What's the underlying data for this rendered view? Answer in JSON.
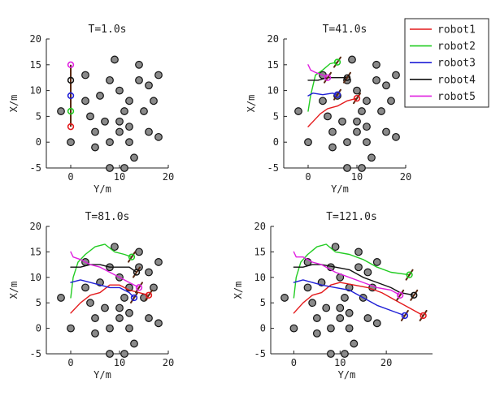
{
  "chart_data": [
    {
      "type": "scatter",
      "title": "T=1.0s",
      "xlabel": "Y/m",
      "ylabel": "X/m",
      "xlim": [
        -5,
        20
      ],
      "ylim": [
        -5,
        20
      ],
      "xticks": [
        "0",
        "10",
        "20"
      ],
      "yticks": [
        "-5",
        "0",
        "5",
        "10",
        "15",
        "20"
      ],
      "series": [
        {
          "name": "robot1",
          "color": "#e41a1c",
          "path": [
            [
              0,
              3
            ]
          ],
          "end": [
            0,
            3
          ]
        },
        {
          "name": "robot2",
          "color": "#22cc22",
          "path": [
            [
              0,
              6
            ]
          ],
          "end": [
            0,
            6
          ]
        },
        {
          "name": "robot3",
          "color": "#1f1fd6",
          "path": [
            [
              0,
              9
            ]
          ],
          "end": [
            0,
            9
          ]
        },
        {
          "name": "robot4",
          "color": "#111111",
          "path": [
            [
              0,
              12
            ]
          ],
          "end": [
            0,
            12
          ]
        },
        {
          "name": "robot5",
          "color": "#e020e0",
          "path": [
            [
              0,
              15
            ]
          ],
          "end": [
            0,
            15
          ]
        }
      ]
    },
    {
      "type": "scatter",
      "title": "T=41.0s",
      "xlabel": "Y/m",
      "ylabel": "X/m",
      "xlim": [
        -5,
        20
      ],
      "ylim": [
        -5,
        20
      ],
      "xticks": [
        "0",
        "10",
        "20"
      ],
      "yticks": [
        "-5",
        "0",
        "5",
        "10",
        "15",
        "20"
      ],
      "series": [
        {
          "name": "robot1",
          "color": "#e41a1c",
          "path": [
            [
              0,
              3
            ],
            [
              1,
              4
            ],
            [
              2.5,
              5.5
            ],
            [
              4,
              6.5
            ],
            [
              6,
              7
            ],
            [
              8,
              8
            ],
            [
              10,
              8.5
            ]
          ],
          "end": [
            10,
            8.5
          ]
        },
        {
          "name": "robot2",
          "color": "#22cc22",
          "path": [
            [
              0,
              6
            ],
            [
              0.5,
              9
            ],
            [
              1,
              11
            ],
            [
              1.5,
              13
            ],
            [
              3,
              14
            ],
            [
              4.5,
              15.2
            ],
            [
              6,
              15.5
            ]
          ],
          "end": [
            6,
            15.5
          ]
        },
        {
          "name": "robot3",
          "color": "#1f1fd6",
          "path": [
            [
              0,
              9
            ],
            [
              1,
              9.5
            ],
            [
              3,
              9.2
            ],
            [
              5,
              9.5
            ],
            [
              6,
              9.2
            ]
          ],
          "end": [
            6,
            9.2
          ]
        },
        {
          "name": "robot4",
          "color": "#111111",
          "path": [
            [
              0,
              12
            ],
            [
              2,
              12
            ],
            [
              4,
              12.5
            ],
            [
              6,
              12.5
            ],
            [
              8,
              12.5
            ]
          ],
          "end": [
            8,
            12.5
          ]
        },
        {
          "name": "robot5",
          "color": "#e020e0",
          "path": [
            [
              0,
              15
            ],
            [
              0.5,
              14
            ],
            [
              1.5,
              13.5
            ],
            [
              3,
              13
            ],
            [
              4,
              12.5
            ]
          ],
          "end": [
            4,
            12.5
          ]
        }
      ]
    },
    {
      "type": "scatter",
      "title": "T=81.0s",
      "xlabel": "Y/m",
      "ylabel": "X/m",
      "xlim": [
        -5,
        20
      ],
      "ylim": [
        -5,
        20
      ],
      "xticks": [
        "0",
        "10",
        "20"
      ],
      "yticks": [
        "-5",
        "0",
        "5",
        "10",
        "15",
        "20"
      ],
      "series": [
        {
          "name": "robot1",
          "color": "#e41a1c",
          "path": [
            [
              0,
              3
            ],
            [
              2,
              5
            ],
            [
              4,
              6.5
            ],
            [
              6,
              7
            ],
            [
              8,
              8.5
            ],
            [
              10,
              8.5
            ],
            [
              12,
              7.5
            ],
            [
              14,
              7
            ],
            [
              16,
              6.5
            ]
          ],
          "end": [
            16,
            6.5
          ]
        },
        {
          "name": "robot2",
          "color": "#22cc22",
          "path": [
            [
              0,
              6
            ],
            [
              0.5,
              10
            ],
            [
              1.5,
              13
            ],
            [
              3,
              14.5
            ],
            [
              5,
              16
            ],
            [
              7,
              16.5
            ],
            [
              9,
              15
            ],
            [
              11,
              14.5
            ],
            [
              12.5,
              14
            ]
          ],
          "end": [
            12.5,
            14
          ]
        },
        {
          "name": "robot3",
          "color": "#1f1fd6",
          "path": [
            [
              0,
              9
            ],
            [
              2,
              9.5
            ],
            [
              4,
              9
            ],
            [
              6,
              8.5
            ],
            [
              8,
              8
            ],
            [
              10,
              8
            ],
            [
              12,
              7
            ],
            [
              13,
              6
            ]
          ],
          "end": [
            13,
            6
          ]
        },
        {
          "name": "robot4",
          "color": "#111111",
          "path": [
            [
              0,
              12
            ],
            [
              2,
              12
            ],
            [
              4,
              12.5
            ],
            [
              6,
              12.5
            ],
            [
              8,
              12
            ],
            [
              10,
              12
            ],
            [
              12,
              12
            ],
            [
              13.5,
              11
            ]
          ],
          "end": [
            13.5,
            11
          ]
        },
        {
          "name": "robot5",
          "color": "#e020e0",
          "path": [
            [
              0,
              15
            ],
            [
              0.5,
              14
            ],
            [
              2,
              13.5
            ],
            [
              4,
              12.5
            ],
            [
              6,
              12
            ],
            [
              8,
              11
            ],
            [
              10,
              10
            ],
            [
              12,
              9
            ],
            [
              14,
              8
            ]
          ],
          "end": [
            14,
            8
          ]
        }
      ]
    },
    {
      "type": "scatter",
      "title": "T=121.0s",
      "xlabel": "Y/m",
      "ylabel": "X/m",
      "xlim": [
        -5,
        30
      ],
      "ylim": [
        -5,
        20
      ],
      "xticks": [
        "0",
        "10",
        "20"
      ],
      "yticks": [
        "-5",
        "0",
        "5",
        "10",
        "15",
        "20"
      ],
      "series": [
        {
          "name": "robot1",
          "color": "#e41a1c",
          "path": [
            [
              0,
              3
            ],
            [
              2,
              5
            ],
            [
              4,
              6.5
            ],
            [
              6,
              7
            ],
            [
              8,
              8.5
            ],
            [
              10,
              9
            ],
            [
              13,
              8.5
            ],
            [
              16,
              8
            ],
            [
              19,
              7
            ],
            [
              22,
              5.5
            ],
            [
              25,
              4
            ],
            [
              28,
              2.5
            ]
          ],
          "end": [
            28,
            2.5
          ]
        },
        {
          "name": "robot2",
          "color": "#22cc22",
          "path": [
            [
              0,
              6
            ],
            [
              0.5,
              10
            ],
            [
              1.5,
              13
            ],
            [
              3,
              14.5
            ],
            [
              5,
              16
            ],
            [
              7,
              16.5
            ],
            [
              9,
              15
            ],
            [
              12,
              14.5
            ],
            [
              15,
              13.5
            ],
            [
              18,
              12
            ],
            [
              21,
              11
            ],
            [
              25,
              10.5
            ]
          ],
          "end": [
            25,
            10.5
          ]
        },
        {
          "name": "robot3",
          "color": "#1f1fd6",
          "path": [
            [
              0,
              9
            ],
            [
              2,
              9.5
            ],
            [
              4,
              9
            ],
            [
              6,
              8.5
            ],
            [
              9,
              8
            ],
            [
              12,
              7.5
            ],
            [
              15,
              6
            ],
            [
              18,
              4.5
            ],
            [
              21,
              3.5
            ],
            [
              24,
              2.5
            ]
          ],
          "end": [
            24,
            2.5
          ]
        },
        {
          "name": "robot4",
          "color": "#111111",
          "path": [
            [
              0,
              12
            ],
            [
              2,
              12
            ],
            [
              4,
              12.5
            ],
            [
              6,
              12.5
            ],
            [
              9,
              12
            ],
            [
              12,
              11.5
            ],
            [
              15,
              10
            ],
            [
              18,
              9
            ],
            [
              21,
              8
            ],
            [
              23,
              7
            ],
            [
              26,
              6.5
            ]
          ],
          "end": [
            26,
            6.5
          ]
        },
        {
          "name": "robot5",
          "color": "#e020e0",
          "path": [
            [
              0,
              15
            ],
            [
              0.5,
              14
            ],
            [
              2,
              14
            ],
            [
              4,
              13
            ],
            [
              6,
              12.5
            ],
            [
              9,
              11
            ],
            [
              12,
              10
            ],
            [
              15,
              9
            ],
            [
              18,
              8
            ],
            [
              21,
              7.5
            ],
            [
              23,
              6.5
            ]
          ],
          "end": [
            23,
            6.5
          ]
        }
      ]
    }
  ],
  "obstacles": [
    [
      -2,
      6
    ],
    [
      0,
      0
    ],
    [
      3,
      13
    ],
    [
      3,
      8
    ],
    [
      4,
      5
    ],
    [
      5,
      2
    ],
    [
      5,
      -1
    ],
    [
      6,
      9
    ],
    [
      7,
      4
    ],
    [
      8,
      12
    ],
    [
      8,
      0
    ],
    [
      8,
      -5
    ],
    [
      9,
      16
    ],
    [
      10,
      10
    ],
    [
      10,
      2
    ],
    [
      10,
      4
    ],
    [
      11,
      6
    ],
    [
      12,
      8
    ],
    [
      12,
      3
    ],
    [
      12,
      0
    ],
    [
      13,
      -3
    ],
    [
      14,
      12
    ],
    [
      14,
      15
    ],
    [
      15,
      6
    ],
    [
      16,
      11
    ],
    [
      16,
      2
    ],
    [
      17,
      8
    ],
    [
      18,
      13
    ],
    [
      18,
      1
    ],
    [
      11,
      -5
    ]
  ],
  "legend": [
    {
      "label": "robot1",
      "color": "#e41a1c"
    },
    {
      "label": "robot2",
      "color": "#22cc22"
    },
    {
      "label": "robot3",
      "color": "#1f1fd6"
    },
    {
      "label": "robot4",
      "color": "#111111"
    },
    {
      "label": "robot5",
      "color": "#e020e0"
    }
  ],
  "legend_placement": "top-right"
}
